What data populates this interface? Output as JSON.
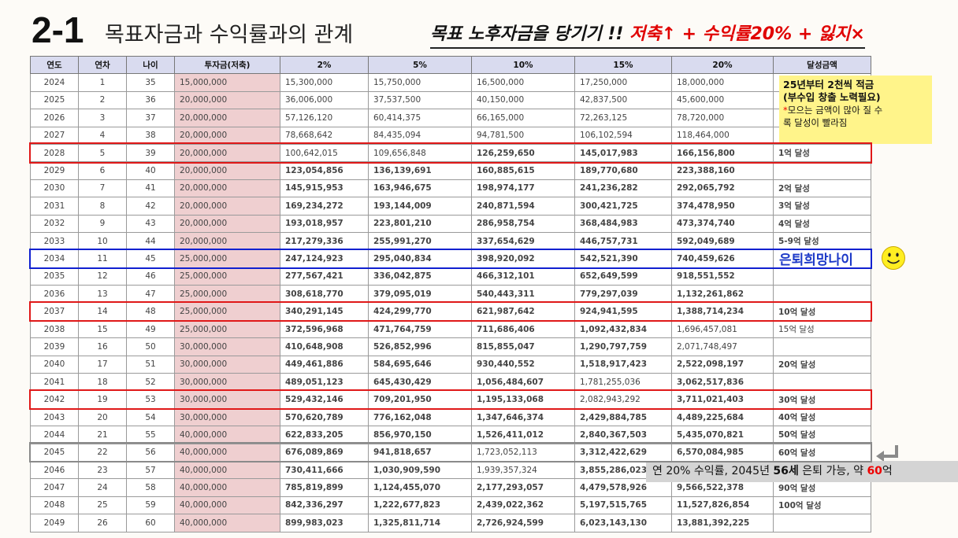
{
  "slide": {
    "title_number": "2-1",
    "title_text": "목표자금과 수익률과의 관계",
    "slogan_part1": "목표 노후자금을 당기기 !! ",
    "slogan_part2": "저축↑ + 수익률20% + 잃지×"
  },
  "table": {
    "headers": [
      "연도",
      "연차",
      "나이",
      "투자금(저축)",
      "2%",
      "5%",
      "10%",
      "15%",
      "20%",
      "달성금액"
    ],
    "rows": [
      [
        "2024",
        "1",
        "35",
        "15,000,000",
        "15,300,000",
        "15,750,000",
        "16,500,000",
        "17,250,000",
        "18,000,000",
        ""
      ],
      [
        "2025",
        "2",
        "36",
        "20,000,000",
        "36,006,000",
        "37,537,500",
        "40,150,000",
        "42,837,500",
        "45,600,000",
        ""
      ],
      [
        "2026",
        "3",
        "37",
        "20,000,000",
        "57,126,120",
        "60,414,375",
        "66,165,000",
        "72,263,125",
        "78,720,000",
        ""
      ],
      [
        "2027",
        "4",
        "38",
        "20,000,000",
        "78,668,642",
        "84,435,094",
        "94,781,500",
        "106,102,594",
        "118,464,000",
        ""
      ],
      [
        "2028",
        "5",
        "39",
        "20,000,000",
        "100,642,015",
        "109,656,848",
        "126,259,650",
        "145,017,983",
        "166,156,800",
        "1억 달성"
      ],
      [
        "2029",
        "6",
        "40",
        "20,000,000",
        "123,054,856",
        "136,139,691",
        "160,885,615",
        "189,770,680",
        "223,388,160",
        ""
      ],
      [
        "2030",
        "7",
        "41",
        "20,000,000",
        "145,915,953",
        "163,946,675",
        "198,974,177",
        "241,236,282",
        "292,065,792",
        "2억 달성"
      ],
      [
        "2031",
        "8",
        "42",
        "20,000,000",
        "169,234,272",
        "193,144,009",
        "240,871,594",
        "300,421,725",
        "374,478,950",
        "3억 달성"
      ],
      [
        "2032",
        "9",
        "43",
        "20,000,000",
        "193,018,957",
        "223,801,210",
        "286,958,754",
        "368,484,983",
        "473,374,740",
        "4억 달성"
      ],
      [
        "2033",
        "10",
        "44",
        "20,000,000",
        "217,279,336",
        "255,991,270",
        "337,654,629",
        "446,757,731",
        "592,049,689",
        "5-9억 달성"
      ],
      [
        "2034",
        "11",
        "45",
        "25,000,000",
        "247,124,923",
        "295,040,834",
        "398,920,092",
        "542,521,390",
        "740,459,626",
        ""
      ],
      [
        "2035",
        "12",
        "46",
        "25,000,000",
        "277,567,421",
        "336,042,875",
        "466,312,101",
        "652,649,599",
        "918,551,552",
        ""
      ],
      [
        "2036",
        "13",
        "47",
        "25,000,000",
        "308,618,770",
        "379,095,019",
        "540,443,311",
        "779,297,039",
        "1,132,261,862",
        ""
      ],
      [
        "2037",
        "14",
        "48",
        "25,000,000",
        "340,291,145",
        "424,299,770",
        "621,987,642",
        "924,941,595",
        "1,388,714,234",
        "10억 달성"
      ],
      [
        "2038",
        "15",
        "49",
        "25,000,000",
        "372,596,968",
        "471,764,759",
        "711,686,406",
        "1,092,432,834",
        "1,696,457,081",
        "15억 달성"
      ],
      [
        "2039",
        "16",
        "50",
        "30,000,000",
        "410,648,908",
        "526,852,996",
        "815,855,047",
        "1,290,797,759",
        "2,071,748,497",
        ""
      ],
      [
        "2040",
        "17",
        "51",
        "30,000,000",
        "449,461,886",
        "584,695,646",
        "930,440,552",
        "1,518,917,423",
        "2,522,098,197",
        "20억 달성"
      ],
      [
        "2041",
        "18",
        "52",
        "30,000,000",
        "489,051,123",
        "645,430,429",
        "1,056,484,607",
        "1,781,255,036",
        "3,062,517,836",
        ""
      ],
      [
        "2042",
        "19",
        "53",
        "30,000,000",
        "529,432,146",
        "709,201,950",
        "1,195,133,068",
        "2,082,943,292",
        "3,711,021,403",
        "30억 달성"
      ],
      [
        "2043",
        "20",
        "54",
        "30,000,000",
        "570,620,789",
        "776,162,048",
        "1,347,646,374",
        "2,429,884,785",
        "4,489,225,684",
        "40억 달성"
      ],
      [
        "2044",
        "21",
        "55",
        "40,000,000",
        "622,833,205",
        "856,970,150",
        "1,526,411,012",
        "2,840,367,503",
        "5,435,070,821",
        "50억 달성"
      ],
      [
        "2045",
        "22",
        "56",
        "40,000,000",
        "676,089,869",
        "941,818,657",
        "1,723,052,113",
        "3,312,422,629",
        "6,570,084,985",
        "60억 달성"
      ],
      [
        "2046",
        "23",
        "57",
        "40,000,000",
        "730,411,666",
        "1,030,909,590",
        "1,939,357,324",
        "3,855,286,023",
        "",
        ""
      ],
      [
        "2047",
        "24",
        "58",
        "40,000,000",
        "785,819,899",
        "1,124,455,070",
        "2,177,293,057",
        "4,479,578,926",
        "9,566,522,378",
        "90억 달성"
      ],
      [
        "2048",
        "25",
        "59",
        "40,000,000",
        "842,336,297",
        "1,222,677,823",
        "2,439,022,362",
        "5,197,515,765",
        "11,527,826,854",
        "100억 달성"
      ],
      [
        "2049",
        "26",
        "60",
        "40,000,000",
        "899,983,023",
        "1,325,811,714",
        "2,726,924,599",
        "6,023,143,130",
        "13,881,392,225",
        ""
      ]
    ],
    "cell_colors": [
      [
        "",
        "",
        "",
        "",
        "",
        ""
      ],
      [
        "",
        "",
        "",
        "",
        "",
        ""
      ],
      [
        "",
        "",
        "",
        "",
        "",
        ""
      ],
      [
        "",
        "",
        "",
        "",
        "",
        ""
      ],
      [
        "",
        "",
        "y",
        "y",
        "y",
        "lg"
      ],
      [
        "y",
        "y",
        "y",
        "y",
        "y",
        ""
      ],
      [
        "y",
        "y",
        "y",
        "lg",
        "lg",
        "lg"
      ],
      [
        "y",
        "y",
        "lg",
        "lg",
        "sb",
        "sb"
      ],
      [
        "y",
        "y",
        "lg",
        "sb",
        "nv",
        "nv"
      ],
      [
        "y",
        "lg",
        "lg",
        "sb",
        "pu",
        "pu"
      ],
      [
        "y",
        "lg",
        "sb",
        "nv",
        "pu",
        ""
      ],
      [
        "y",
        "sb",
        "nv",
        "pu",
        "nv",
        ""
      ],
      [
        "lg",
        "sb",
        "nv",
        "pu",
        "pu",
        ""
      ],
      [
        "sb",
        "pu",
        "pu",
        "nv",
        "rd",
        "rd"
      ],
      [
        "sb",
        "nv",
        "pu",
        "nv",
        "gr",
        "gr"
      ],
      [
        "sb",
        "nv",
        "pu",
        "or",
        "gr",
        ""
      ],
      [
        "nv",
        "pu",
        "pu",
        "rd",
        "dg",
        "dg"
      ],
      [
        "nv",
        "pu",
        "nv",
        "gr",
        "dg",
        ""
      ],
      [
        "pu",
        "nv",
        "rd",
        "gr",
        "nv",
        "nv"
      ],
      [
        "pu",
        "pu",
        "or",
        "dg",
        "rd",
        "rd"
      ],
      [
        "pu",
        "nv",
        "or",
        "dg",
        "nv",
        "nv"
      ],
      [
        "pu",
        "nv",
        "gr",
        "sb",
        "mg",
        "mg"
      ],
      [
        "pu",
        "nv",
        "gr",
        "sb",
        "",
        ""
      ],
      [
        "pu",
        "or",
        "dg",
        "pu",
        "bk",
        "bk"
      ],
      [
        "pu",
        "or",
        "dg",
        "nv",
        "bk",
        "bk"
      ],
      [
        "pu",
        "rd",
        "dg",
        "pu",
        "bk",
        ""
      ]
    ],
    "highlights": [
      {
        "row": 4,
        "color": "red"
      },
      {
        "row": 10,
        "color": "blue"
      },
      {
        "row": 13,
        "color": "red"
      },
      {
        "row": 18,
        "color": "red"
      },
      {
        "row": 21,
        "color": "gray"
      }
    ]
  },
  "notes": {
    "sticky_line1": "25년부터 2천씩 적금",
    "sticky_line2": "(부수입 창출 노력필요)",
    "sticky_line3_star": "*",
    "sticky_line3": "모으는 금액이 많아 질 수",
    "sticky_line4": "록 달성이 빨라짐",
    "retire_hope": "은퇴희망나이",
    "callout_a": "연 20% 수익률, 2045년 ",
    "callout_b": "56세",
    "callout_c": " 은퇴 가능, 약 ",
    "callout_d": "60",
    "callout_e": "억"
  },
  "colors": {
    "header_bg": "#d9dbef",
    "invest_col_bg": "#efcfd0",
    "sticky_bg": "#fff48a",
    "red_box": "#e01818",
    "blue_box": "#1020d0",
    "smiley": "#ffee22"
  },
  "icons": [
    "smiley-icon",
    "return-arrow-icon"
  ]
}
